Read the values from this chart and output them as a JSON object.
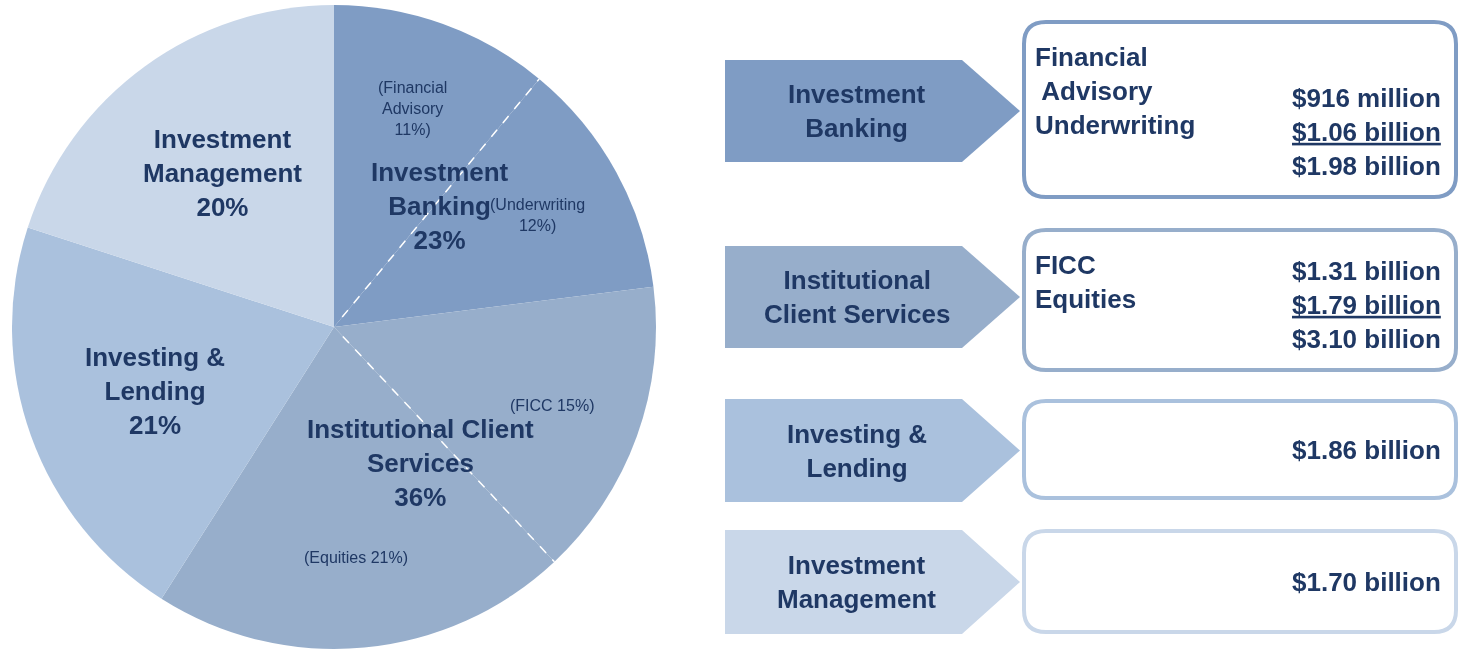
{
  "chart_data": [
    {
      "type": "pie",
      "categories": [
        null,
        null,
        null,
        null,
        null,
        null
      ],
      "values": [
        11,
        12,
        15,
        21,
        21,
        20
      ],
      "colors": [
        "#7f9cc4",
        "#7f9cc4",
        "#97aecb",
        "#97aecb",
        "#aac1dd",
        "#c9d7e9"
      ],
      "value_labels": [
        "(Financial\nAdvisory\n11%)",
        "(Underwriting\n12%)",
        "(FICC 15%)",
        "(Equities 21%)",
        "Investing &\nLending\n21%",
        "Investment\nManagement\n20%"
      ],
      "annotations": [
        "Investment\nBanking\n23%",
        "Institutional Client\nServices\n36%"
      ]
    },
    {
      "type": "other",
      "categories": [
        "Investment\nBanking",
        "Institutional\nClient Services",
        "Investing &\nLending",
        "Investment\nManagement"
      ],
      "colors": [
        "#7f9cc4",
        "#97aecb",
        "#aac1dd",
        "#c9d7e9"
      ],
      "annotations": [
        "Financial\n Advisory\nUnderwriting",
        "$916 million\n$1.06 billion\n$1.98 billion",
        "FICC\nEquities",
        "$1.31 billion\n$1.79 billion\n$3.10 billion",
        "$1.86 billion",
        "$1.70 billion"
      ]
    }
  ]
}
